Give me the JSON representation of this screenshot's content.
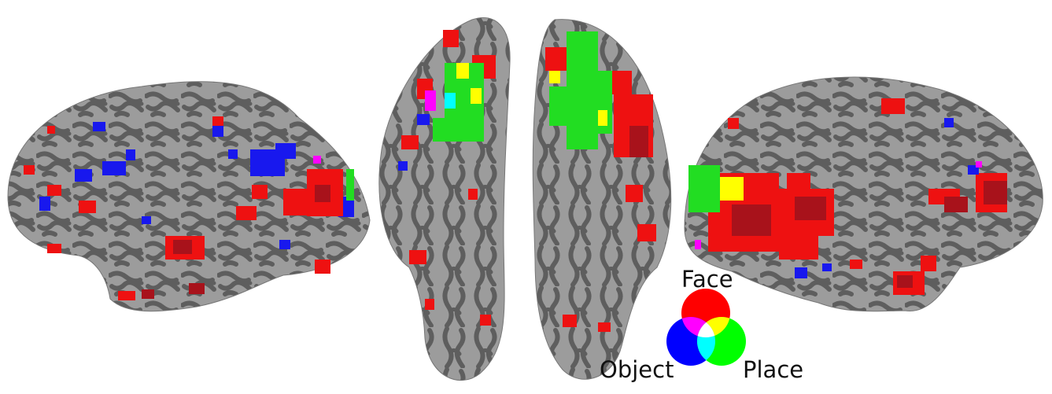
{
  "legend": {
    "face_label": "Face",
    "object_label": "Object",
    "place_label": "Place"
  },
  "colors": {
    "face": "#ff0000",
    "object": "#0000ff",
    "place": "#00ff00",
    "face_object_overlap": "#ff00ff",
    "face_place_overlap": "#ffff00",
    "object_place_overlap": "#00ffff",
    "all_overlap": "#ffffff",
    "cortex_gyri": "#9a9a9a",
    "cortex_sulci": "#5b5b5b"
  },
  "panels": [
    {
      "view": "left-lateral",
      "icon": "brain-lateral-left-icon"
    },
    {
      "view": "left-ventral",
      "icon": "brain-ventral-left-icon"
    },
    {
      "view": "right-ventral",
      "icon": "brain-ventral-right-icon"
    },
    {
      "view": "right-lateral",
      "icon": "brain-lateral-right-icon"
    }
  ]
}
